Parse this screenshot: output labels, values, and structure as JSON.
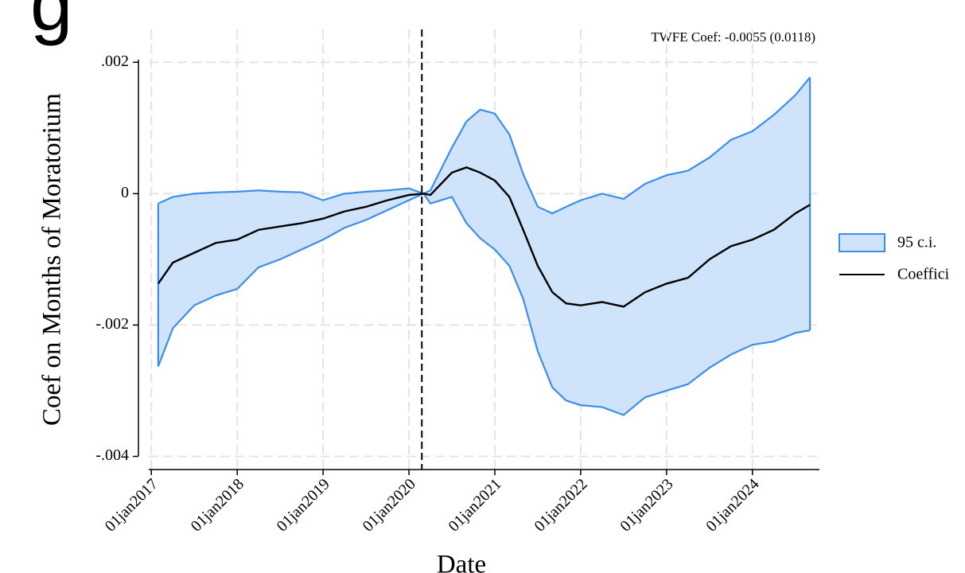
{
  "header": {
    "fragment": "g"
  },
  "chart_data": {
    "type": "band-line",
    "annotation": "TWFE Coef: -0.0055 (0.0118)",
    "y_label": "Coef on Months of Moratorium",
    "x_label": "Date",
    "xlim": [
      2016.97,
      2024.78
    ],
    "ylim": [
      -0.0042,
      0.0025
    ],
    "xticks": [
      {
        "value": 2017,
        "label": "01jan2017"
      },
      {
        "value": 2018,
        "label": "01jan2018"
      },
      {
        "value": 2019,
        "label": "01jan2019"
      },
      {
        "value": 2020,
        "label": "01jan2020"
      },
      {
        "value": 2021,
        "label": "01jan2021"
      },
      {
        "value": 2022,
        "label": "01jan2022"
      },
      {
        "value": 2023,
        "label": "01jan2023"
      },
      {
        "value": 2024,
        "label": "01jan2024"
      }
    ],
    "yticks": [
      {
        "value": 0.002,
        "label": ".002"
      },
      0,
      {
        "value": -0.002,
        "label": "-.002"
      },
      {
        "value": -0.004,
        "label": "-.004"
      }
    ],
    "grid": true,
    "vline": 2020.15,
    "legend": "right",
    "x": [
      2017.08,
      2017.25,
      2017.5,
      2017.75,
      2018.0,
      2018.25,
      2018.5,
      2018.75,
      2019.0,
      2019.25,
      2019.5,
      2019.75,
      2020.0,
      2020.17,
      2020.25,
      2020.5,
      2020.67,
      2020.83,
      2021.0,
      2021.17,
      2021.33,
      2021.5,
      2021.67,
      2021.83,
      2022.0,
      2022.25,
      2022.5,
      2022.75,
      2023.0,
      2023.25,
      2023.5,
      2023.75,
      2024.0,
      2024.25,
      2024.5,
      2024.67
    ],
    "series": [
      {
        "name": "95 c.i.",
        "color": "#3d8ee8",
        "fill": "#cfe3fb",
        "upper": [
          -0.00015,
          -5e-05,
          0.0,
          2e-05,
          3e-05,
          5e-05,
          3e-05,
          2e-05,
          -0.0001,
          0.0,
          3e-05,
          5e-05,
          8e-05,
          0.0,
          5e-05,
          0.0007,
          0.0011,
          0.00128,
          0.00122,
          0.0009,
          0.0003,
          -0.0002,
          -0.0003,
          -0.0002,
          -0.0001,
          0.0,
          -8e-05,
          0.00015,
          0.00028,
          0.00035,
          0.00055,
          0.00082,
          0.00095,
          0.0012,
          0.0015,
          0.00177
        ],
        "lower": [
          -0.00263,
          -0.00205,
          -0.0017,
          -0.00155,
          -0.00145,
          -0.00112,
          -0.001,
          -0.00085,
          -0.0007,
          -0.00052,
          -0.0004,
          -0.00025,
          -0.0001,
          0.0,
          -0.00015,
          -5e-05,
          -0.00045,
          -0.00068,
          -0.00085,
          -0.0011,
          -0.0016,
          -0.0024,
          -0.00295,
          -0.00315,
          -0.00322,
          -0.00325,
          -0.00337,
          -0.0031,
          -0.003,
          -0.0029,
          -0.00265,
          -0.00245,
          -0.0023,
          -0.00225,
          -0.00212,
          -0.00208
        ]
      },
      {
        "name": "Coeffici",
        "color": "#000000",
        "values": [
          -0.00137,
          -0.00105,
          -0.0009,
          -0.00075,
          -0.0007,
          -0.00055,
          -0.0005,
          -0.00045,
          -0.00038,
          -0.00027,
          -0.0002,
          -0.0001,
          -2e-05,
          0.0,
          -2e-05,
          0.00032,
          0.0004,
          0.00032,
          0.0002,
          -5e-05,
          -0.00055,
          -0.0011,
          -0.0015,
          -0.00167,
          -0.0017,
          -0.00165,
          -0.00172,
          -0.0015,
          -0.00137,
          -0.00128,
          -0.001,
          -0.0008,
          -0.0007,
          -0.00055,
          -0.0003,
          -0.00017
        ]
      }
    ]
  }
}
